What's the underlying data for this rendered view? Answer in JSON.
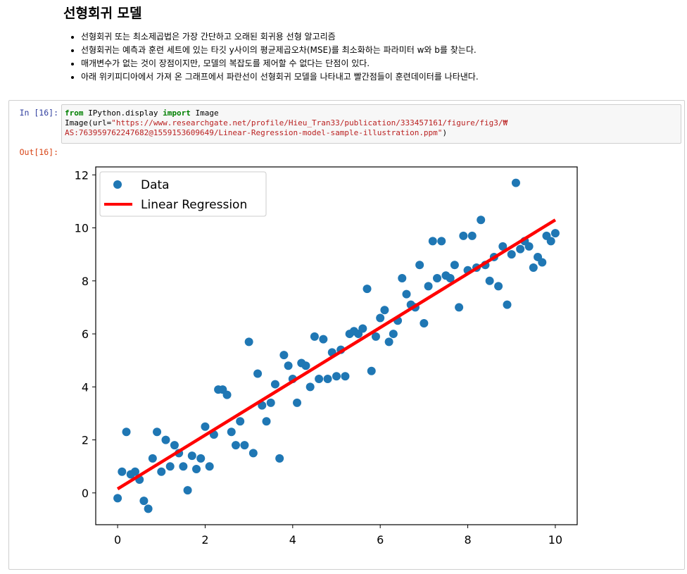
{
  "markdown": {
    "heading": "선형회귀 모델",
    "bullets": [
      "선형회귀 또는 최소제곱법은 가장 간단하고 오래된 회귀용 선형 알고리즘",
      "선형회귀는 예측과 훈련 세트에 있는 타깃 y사이의 평균제곱오차(MSE)를 최소화하는 파라미터 w와 b를 찾는다.",
      "매개변수가 없는 것이 장점이지만, 모델의 복잡도를 제어할 수 없다는 단점이 있다.",
      "아래 위키피디아에서 가져 온 그래프에서 파란선이 선형회귀 모델을 나타내고 빨간점들이 훈련데이터를 나타낸다."
    ]
  },
  "cell": {
    "in_prompt": "In [16]:",
    "out_prompt": "Out[16]:",
    "code": {
      "kw_from": "from",
      "module": " IPython.display ",
      "kw_import": "import",
      "name": " Image",
      "line2_prefix": "Image(url=",
      "url_part1": "\"https://www.researchgate.net/profile/Hieu_Tran33/publication/333457161/figure/fig3/₩",
      "url_part2": "AS:763959762247682@1559153609649/Linear-Regression-model-sample-illustration.ppm\"",
      "line3_suffix": ")"
    }
  },
  "chart_data": {
    "type": "scatter",
    "xlim": [
      -0.5,
      10.5
    ],
    "ylim": [
      -1.2,
      12.3
    ],
    "xticks": [
      0,
      2,
      4,
      6,
      8,
      10
    ],
    "yticks": [
      0,
      2,
      4,
      6,
      8,
      10,
      12
    ],
    "legend_position": "top-left",
    "colors": {
      "data": "#1f77b4",
      "line": "#ff0000"
    },
    "series": [
      {
        "name": "Data",
        "kind": "points",
        "x": [
          0.0,
          0.1,
          0.2,
          0.3,
          0.4,
          0.5,
          0.6,
          0.7,
          0.8,
          0.9,
          1.0,
          1.1,
          1.2,
          1.3,
          1.4,
          1.5,
          1.6,
          1.7,
          1.8,
          1.9,
          2.0,
          2.1,
          2.2,
          2.3,
          2.4,
          2.5,
          2.6,
          2.7,
          2.8,
          2.9,
          3.0,
          3.1,
          3.2,
          3.3,
          3.4,
          3.5,
          3.6,
          3.7,
          3.8,
          3.9,
          4.0,
          4.1,
          4.2,
          4.3,
          4.4,
          4.5,
          4.6,
          4.7,
          4.8,
          4.9,
          5.0,
          5.1,
          5.2,
          5.3,
          5.4,
          5.5,
          5.6,
          5.7,
          5.8,
          5.9,
          6.0,
          6.1,
          6.2,
          6.3,
          6.4,
          6.5,
          6.6,
          6.7,
          6.8,
          6.9,
          7.0,
          7.1,
          7.2,
          7.3,
          7.4,
          7.5,
          7.6,
          7.7,
          7.8,
          7.9,
          8.0,
          8.1,
          8.2,
          8.3,
          8.4,
          8.5,
          8.6,
          8.7,
          8.8,
          8.9,
          9.0,
          9.1,
          9.2,
          9.3,
          9.4,
          9.5,
          9.6,
          9.7,
          9.8,
          9.9,
          10.0
        ],
        "y": [
          -0.2,
          0.8,
          2.3,
          0.7,
          0.8,
          0.5,
          -0.3,
          -0.6,
          1.3,
          2.3,
          0.8,
          2.0,
          1.0,
          1.8,
          1.5,
          1.0,
          0.1,
          1.4,
          0.9,
          1.3,
          2.5,
          1.0,
          2.2,
          3.9,
          3.9,
          3.7,
          2.3,
          1.8,
          2.7,
          1.8,
          5.7,
          1.5,
          4.5,
          3.3,
          2.7,
          3.4,
          4.1,
          1.3,
          5.2,
          4.8,
          4.3,
          3.4,
          4.9,
          4.8,
          4.0,
          5.9,
          4.3,
          5.8,
          4.3,
          5.3,
          4.4,
          5.4,
          4.4,
          6.0,
          6.1,
          6.0,
          6.2,
          7.7,
          4.6,
          5.9,
          6.6,
          6.9,
          5.7,
          6.0,
          6.5,
          8.1,
          7.5,
          7.1,
          7.0,
          8.6,
          6.4,
          7.8,
          9.5,
          8.1,
          9.5,
          8.2,
          8.1,
          8.6,
          7.0,
          9.7,
          8.4,
          9.7,
          8.5,
          10.3,
          8.6,
          8.0,
          8.9,
          7.8,
          9.3,
          7.1,
          9.0,
          11.7,
          9.2,
          9.5,
          9.3,
          8.5,
          8.9,
          8.7,
          9.7,
          9.5,
          9.8
        ]
      },
      {
        "name": "Linear Regression",
        "kind": "line",
        "x": [
          0,
          10
        ],
        "y": [
          0.15,
          10.3
        ]
      }
    ]
  }
}
